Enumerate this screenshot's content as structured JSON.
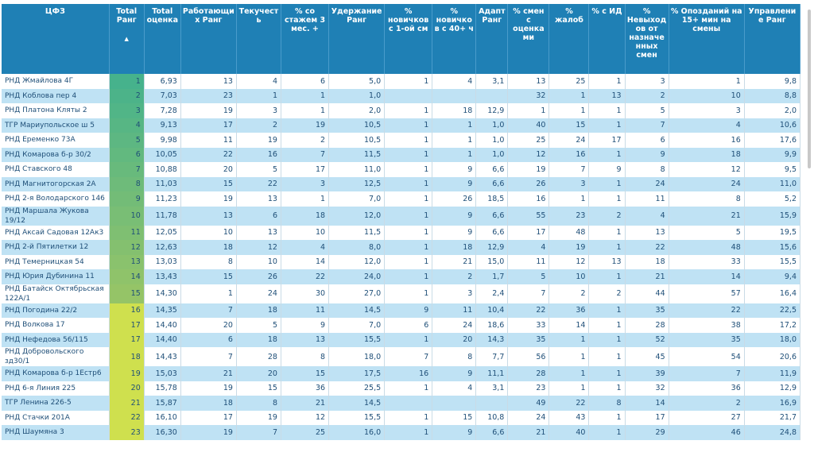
{
  "table": {
    "columns": [
      "ЦФЗ",
      "Total Ранг",
      "Total оценка",
      "Работающих Ранг",
      "Текучесть",
      "% со стажем 3 мес. +",
      "Удержание Ранг",
      "% новичков с 1-ой см",
      "% новичков с 40+ ч",
      "Адапт Ранг",
      "% смен с оценками",
      "% жалоб",
      "% с ИД",
      "% Невыходов от назначенных смен",
      "% Опозданий на 15+ мин на смены",
      "Управление Ранг"
    ],
    "rows": [
      [
        "РНД Жмайлова 4Г",
        1,
        "6,93",
        13,
        4,
        6,
        "5,0",
        1,
        4,
        "3,1",
        13,
        25,
        1,
        3,
        1,
        "9,8"
      ],
      [
        "РНД Коблова пер 4",
        2,
        "7,03",
        23,
        1,
        1,
        "1,0",
        null,
        null,
        null,
        32,
        1,
        13,
        2,
        10,
        "8,8"
      ],
      [
        "РНД Платона Кляты 2",
        3,
        "7,28",
        19,
        3,
        1,
        "2,0",
        1,
        18,
        "12,9",
        1,
        1,
        1,
        5,
        3,
        "2,0"
      ],
      [
        "ТГР Мариупольское ш 5",
        4,
        "9,13",
        17,
        2,
        19,
        "10,5",
        1,
        1,
        "1,0",
        40,
        15,
        1,
        7,
        4,
        "10,6"
      ],
      [
        "РНД Еременко 73А",
        5,
        "9,98",
        11,
        19,
        2,
        "10,5",
        1,
        1,
        "1,0",
        25,
        24,
        17,
        6,
        16,
        "17,6"
      ],
      [
        "РНД Комарова б-р 30/2",
        6,
        "10,05",
        22,
        16,
        7,
        "11,5",
        1,
        1,
        "1,0",
        12,
        16,
        1,
        9,
        18,
        "9,9"
      ],
      [
        "РНД Ставского 48",
        7,
        "10,88",
        20,
        5,
        17,
        "11,0",
        1,
        9,
        "6,6",
        19,
        7,
        9,
        8,
        12,
        "9,5"
      ],
      [
        "РНД Магнитогорская 2А",
        8,
        "11,03",
        15,
        22,
        3,
        "12,5",
        1,
        9,
        "6,6",
        26,
        3,
        1,
        24,
        24,
        "11,0"
      ],
      [
        "РНД 2-я Володарского 146",
        9,
        "11,23",
        19,
        13,
        1,
        "7,0",
        1,
        26,
        "18,5",
        16,
        1,
        1,
        11,
        8,
        "5,2"
      ],
      [
        "РНД Маршала Жукова 19/12",
        10,
        "11,78",
        13,
        6,
        18,
        "12,0",
        1,
        9,
        "6,6",
        55,
        23,
        2,
        4,
        21,
        "15,9"
      ],
      [
        "РНД Аксай Садовая 12Ак3",
        11,
        "12,05",
        10,
        13,
        10,
        "11,5",
        1,
        9,
        "6,6",
        17,
        48,
        1,
        13,
        5,
        "19,5"
      ],
      [
        "РНД 2-й Пятилетки 12",
        12,
        "12,63",
        18,
        12,
        4,
        "8,0",
        1,
        18,
        "12,9",
        4,
        19,
        1,
        22,
        48,
        "15,6"
      ],
      [
        "РНД Темерницкая 54",
        13,
        "13,03",
        8,
        10,
        14,
        "12,0",
        1,
        21,
        "15,0",
        11,
        12,
        13,
        18,
        33,
        "15,5"
      ],
      [
        "РНД Юрия Дубинина 11",
        14,
        "13,43",
        15,
        26,
        22,
        "24,0",
        1,
        2,
        "1,7",
        5,
        10,
        1,
        21,
        14,
        "9,4"
      ],
      [
        "РНД Батайск Октябрьская 122А/1",
        15,
        "14,30",
        1,
        24,
        30,
        "27,0",
        1,
        3,
        "2,4",
        7,
        2,
        2,
        44,
        57,
        "16,4"
      ],
      [
        "РНД Погодина 22/2",
        16,
        "14,35",
        7,
        18,
        11,
        "14,5",
        9,
        11,
        "10,4",
        22,
        36,
        1,
        35,
        22,
        "22,5"
      ],
      [
        "РНД Волкова 17",
        17,
        "14,40",
        20,
        5,
        9,
        "7,0",
        6,
        24,
        "18,6",
        33,
        14,
        1,
        28,
        38,
        "17,2"
      ],
      [
        "РНД Нефедова 56/115",
        17,
        "14,40",
        6,
        18,
        13,
        "15,5",
        1,
        20,
        "14,3",
        35,
        1,
        1,
        52,
        35,
        "18,0"
      ],
      [
        "РНД Добровольского зд30/1",
        18,
        "14,43",
        7,
        28,
        8,
        "18,0",
        7,
        8,
        "7,7",
        56,
        1,
        1,
        45,
        54,
        "20,6"
      ],
      [
        "РНД Комарова б-р 1Естр6",
        19,
        "15,03",
        21,
        20,
        15,
        "17,5",
        16,
        9,
        "11,1",
        28,
        1,
        1,
        39,
        7,
        "11,9"
      ],
      [
        "РНД 6-я Линия 225",
        20,
        "15,78",
        19,
        15,
        36,
        "25,5",
        1,
        4,
        "3,1",
        23,
        1,
        1,
        32,
        36,
        "12,9"
      ],
      [
        "ТГР Ленина 226-5",
        21,
        "15,87",
        18,
        8,
        21,
        "14,5",
        null,
        null,
        null,
        49,
        22,
        8,
        14,
        2,
        "16,9"
      ],
      [
        "РНД Стачки 201А",
        22,
        "16,10",
        17,
        19,
        12,
        "15,5",
        1,
        15,
        "10,8",
        24,
        43,
        1,
        17,
        27,
        "21,7"
      ],
      [
        "РНД Шаумяна 3",
        23,
        "16,30",
        19,
        7,
        25,
        "16,0",
        1,
        9,
        "6,6",
        21,
        40,
        1,
        29,
        46,
        "24,8"
      ]
    ]
  }
}
